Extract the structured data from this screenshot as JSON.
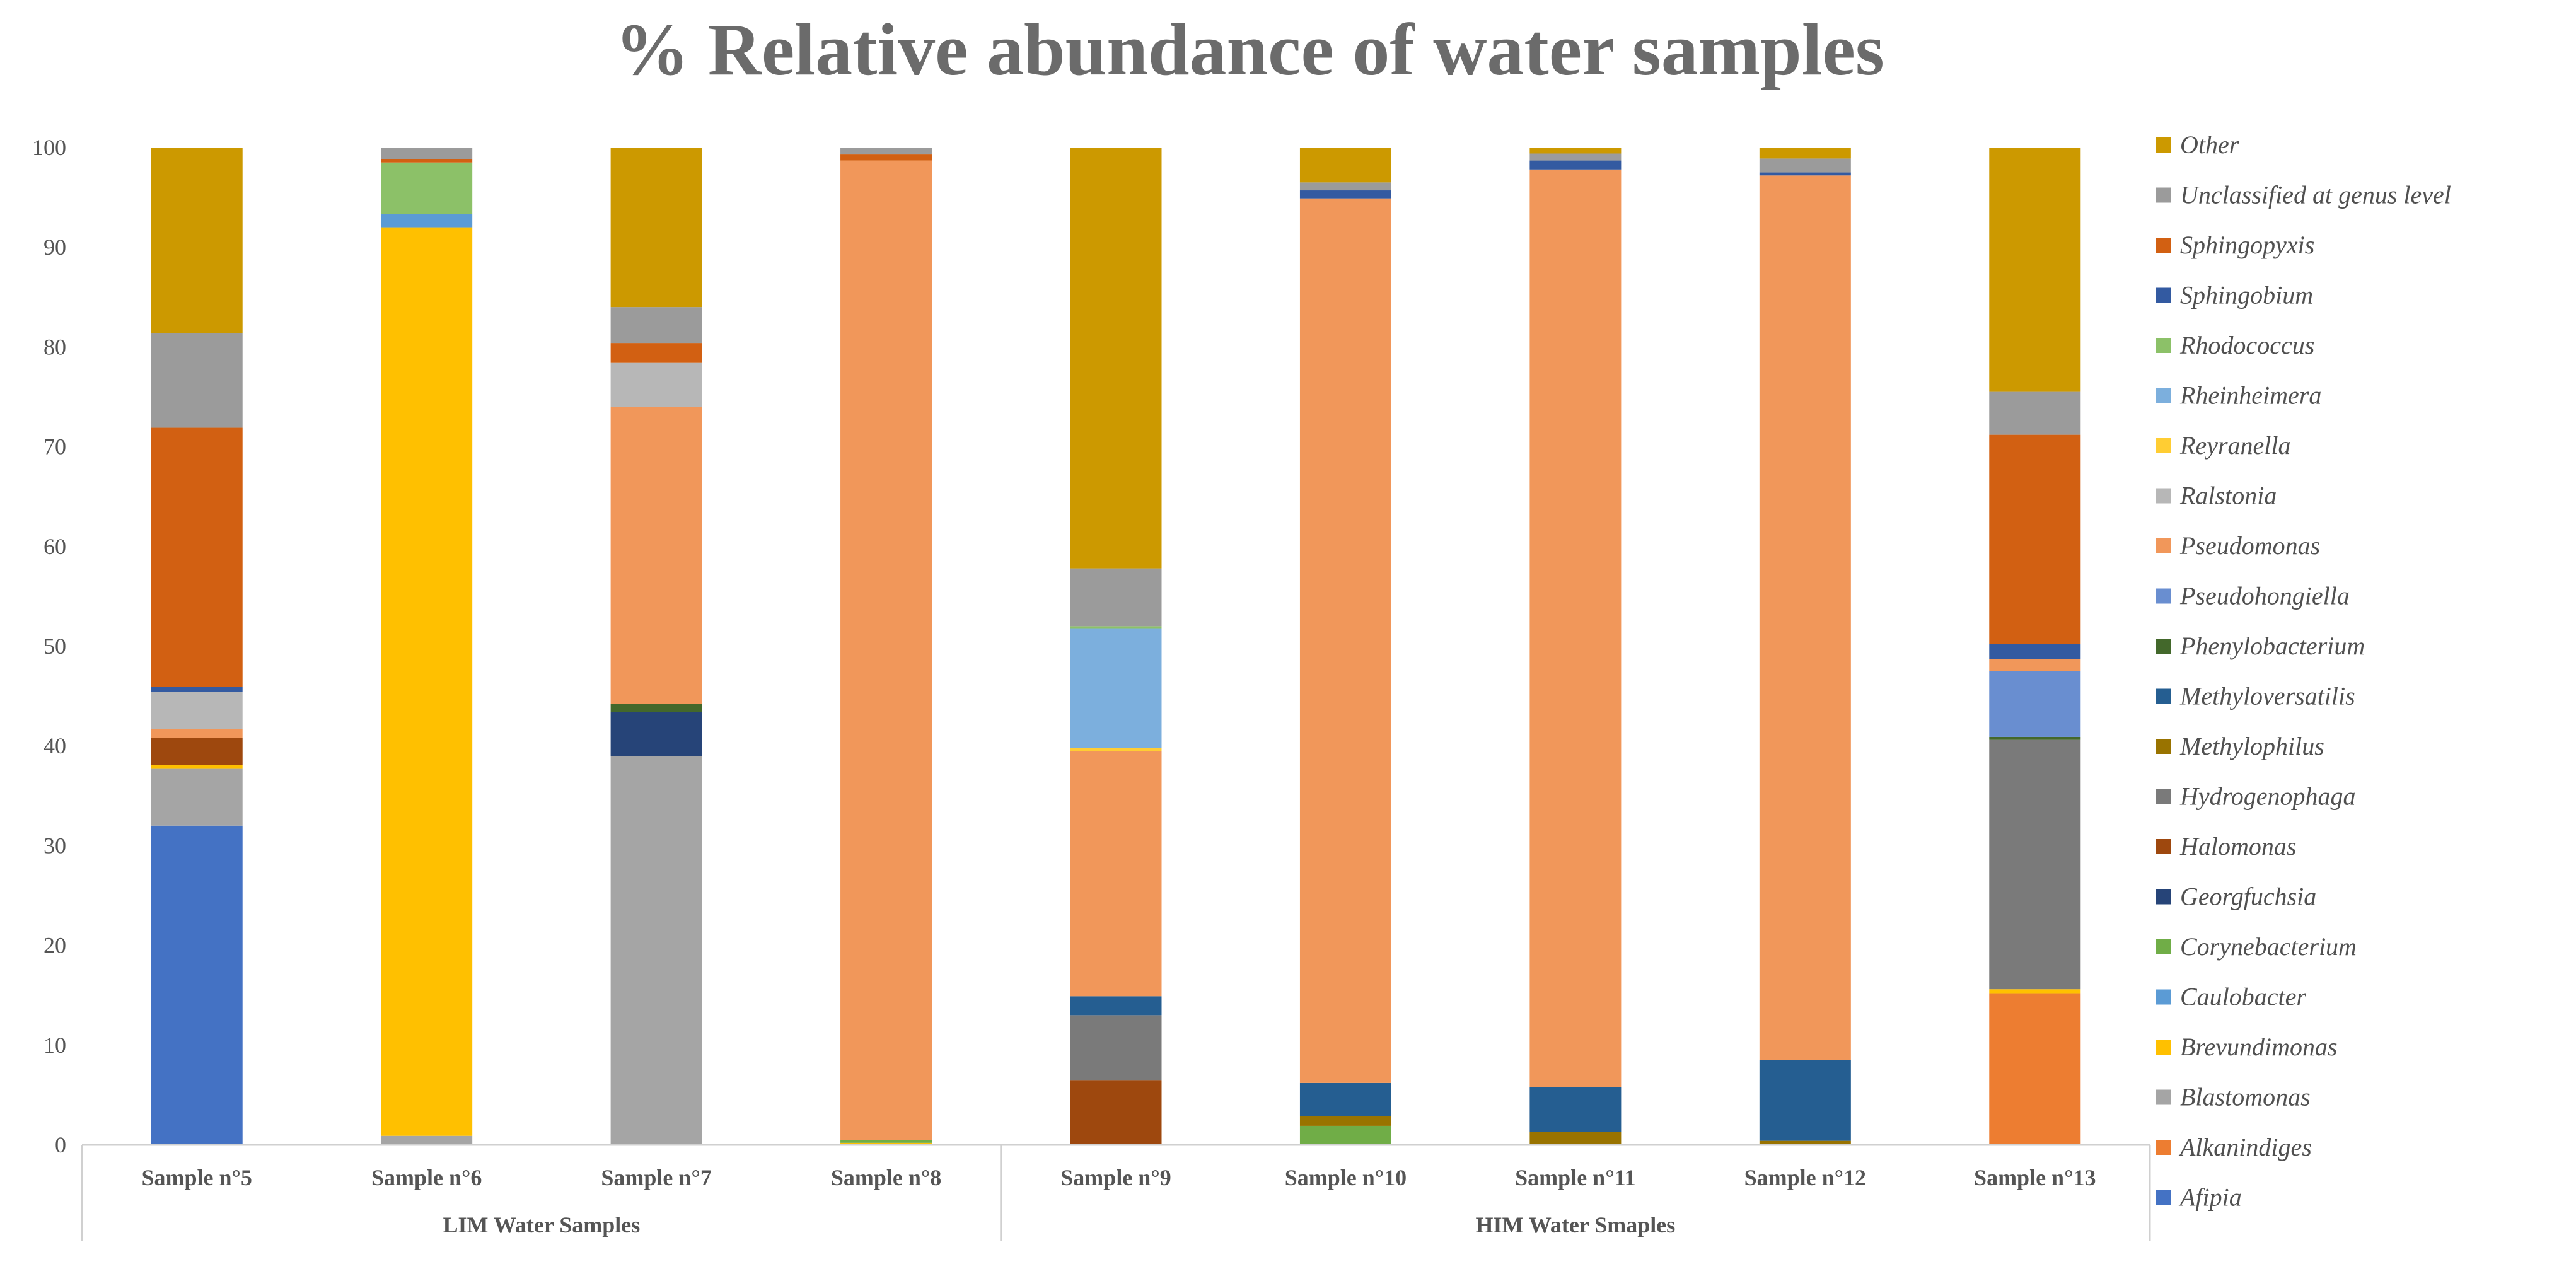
{
  "chart_data": {
    "type": "bar",
    "stacked": true,
    "title": "% Relative abundance of water samples",
    "xlabel": "",
    "ylabel": "",
    "ylim": [
      0,
      100
    ],
    "yticks": [
      0,
      10,
      20,
      30,
      40,
      50,
      60,
      70,
      80,
      90,
      100
    ],
    "legend_position": "right",
    "categories": [
      "Sample n°5",
      "Sample n°6",
      "Sample n°7",
      "Sample n°8",
      "Sample n°9",
      "Sample n°10",
      "Sample n°11",
      "Sample n°12",
      "Sample n°13"
    ],
    "groups": [
      {
        "label": "LIM Water Samples",
        "categories": [
          "Sample n°5",
          "Sample n°6",
          "Sample n°7",
          "Sample n°8"
        ]
      },
      {
        "label": "HIM Water Smaples",
        "categories": [
          "Sample n°9",
          "Sample n°10",
          "Sample n°11",
          "Sample n°12",
          "Sample n°13"
        ]
      }
    ],
    "series": [
      {
        "name": "Afipia",
        "color": "#4472c4",
        "values": [
          32,
          0,
          0,
          0,
          0,
          0,
          0,
          0,
          0
        ]
      },
      {
        "name": "Alkanindiges",
        "color": "#ed7d31",
        "values": [
          0,
          0,
          0,
          0,
          0,
          0,
          0,
          0,
          15.2
        ]
      },
      {
        "name": "Blastomonas",
        "color": "#a5a5a5",
        "values": [
          5.7,
          0.9,
          39,
          0,
          0,
          0,
          0,
          0,
          0
        ]
      },
      {
        "name": "Brevundimonas",
        "color": "#ffc000",
        "values": [
          0.4,
          91.1,
          0,
          0.2,
          0,
          0,
          0,
          0,
          0.4
        ]
      },
      {
        "name": "Caulobacter",
        "color": "#5b9bd5",
        "values": [
          0,
          1.3,
          0,
          0,
          0,
          0,
          0,
          0,
          0
        ]
      },
      {
        "name": "Corynebacterium",
        "color": "#70ad47",
        "values": [
          0,
          0,
          0,
          0.3,
          0,
          1.9,
          0,
          0,
          0
        ]
      },
      {
        "name": "Georgfuchsia",
        "color": "#264478",
        "values": [
          0,
          0,
          4.4,
          0,
          0,
          0,
          0,
          0,
          0
        ]
      },
      {
        "name": "Halomonas",
        "color": "#9e480e",
        "values": [
          2.7,
          0,
          0,
          0,
          6.5,
          0,
          0,
          0,
          0
        ]
      },
      {
        "name": "Hydrogenophaga",
        "color": "#7a7a7a",
        "values": [
          0,
          0,
          0,
          0,
          6.5,
          0,
          0,
          0,
          25
        ]
      },
      {
        "name": "Methylophilus",
        "color": "#997300",
        "values": [
          0,
          0,
          0,
          0,
          0,
          1,
          1.3,
          0.4,
          0
        ]
      },
      {
        "name": "Methyloversatilis",
        "color": "#255e91",
        "values": [
          0,
          0,
          0,
          0,
          1.9,
          3.3,
          4.5,
          8.1,
          0
        ]
      },
      {
        "name": "Phenylobacterium",
        "color": "#43682b",
        "values": [
          0,
          0,
          0.8,
          0,
          0,
          0,
          0,
          0,
          0.3
        ]
      },
      {
        "name": "Pseudohongiella",
        "color": "#698ed0",
        "values": [
          0,
          0,
          0,
          0,
          0,
          0,
          0,
          0,
          6.6
        ]
      },
      {
        "name": "Pseudomonas",
        "color": "#f1975a",
        "values": [
          0.9,
          0,
          29.8,
          98.2,
          24.6,
          88.7,
          92,
          88.7,
          1.2
        ]
      },
      {
        "name": "Ralstonia",
        "color": "#b7b7b7",
        "values": [
          3.7,
          0,
          4.4,
          0,
          0,
          0,
          0,
          0,
          0
        ]
      },
      {
        "name": "Reyranella",
        "color": "#ffcd33",
        "values": [
          0,
          0,
          0,
          0,
          0.3,
          0,
          0,
          0,
          0
        ]
      },
      {
        "name": "Rheinheimera",
        "color": "#7cafdd",
        "values": [
          0,
          0,
          0,
          0,
          12,
          0,
          0,
          0,
          0
        ]
      },
      {
        "name": "Rhodococcus",
        "color": "#8cc168",
        "values": [
          0,
          5.2,
          0,
          0,
          0.2,
          0,
          0,
          0,
          0
        ]
      },
      {
        "name": "Sphingobium",
        "color": "#335aa1",
        "values": [
          0.5,
          0,
          0,
          0,
          0,
          0.8,
          0.9,
          0.3,
          1.5
        ]
      },
      {
        "name": "Sphingopyxis",
        "color": "#d26012",
        "values": [
          26,
          0.3,
          2,
          0.6,
          0,
          0,
          0,
          0,
          21
        ]
      },
      {
        "name": "Unclassified at genus level",
        "color": "#9b9b9b",
        "values": [
          9.5,
          1.2,
          3.6,
          0.7,
          5.8,
          0.8,
          0.7,
          1.4,
          4.3
        ]
      },
      {
        "name": "Other",
        "color": "#cc9900",
        "values": [
          18.6,
          0,
          16,
          0,
          42.2,
          3.5,
          0.6,
          1.1,
          24.5
        ]
      }
    ]
  }
}
